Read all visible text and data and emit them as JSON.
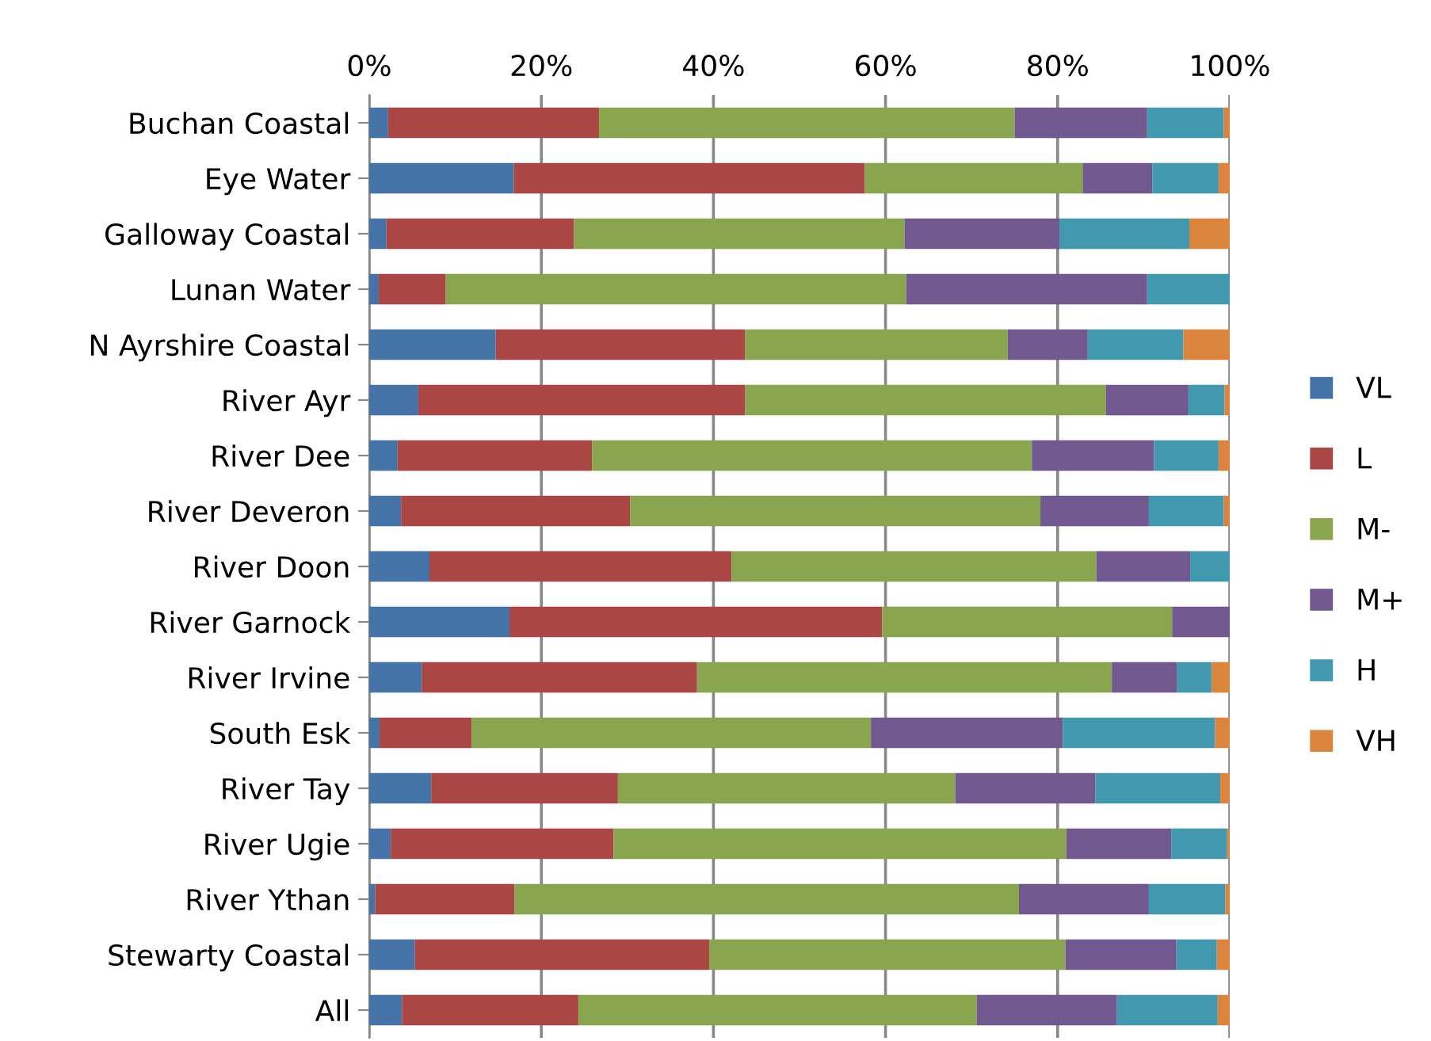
{
  "chart_data": {
    "type": "bar",
    "orientation": "horizontal",
    "stacked": true,
    "categories": [
      "Buchan Coastal",
      "Eye Water",
      "Galloway Coastal",
      "Lunan Water",
      "N Ayrshire Coastal",
      "River Ayr",
      "River Dee",
      "River Deveron",
      "River Doon",
      "River Garnock",
      "River Irvine",
      "South Esk",
      "River Tay",
      "River Ugie",
      "River Ythan",
      "Stewarty Coastal",
      "All"
    ],
    "series": [
      {
        "name": "VL",
        "color": "#4572a7",
        "values": [
          2.2,
          16.8,
          2.0,
          1.1,
          14.7,
          5.7,
          3.3,
          3.7,
          7.0,
          16.3,
          6.1,
          1.2,
          7.2,
          2.5,
          0.7,
          5.3,
          3.8
        ]
      },
      {
        "name": "L",
        "color": "#aa4643",
        "values": [
          24.5,
          40.8,
          21.8,
          7.8,
          29.0,
          38.0,
          22.6,
          26.6,
          35.1,
          43.3,
          32.0,
          10.7,
          21.7,
          25.9,
          16.2,
          34.2,
          20.5
        ]
      },
      {
        "name": "M-",
        "color": "#89a54e",
        "values": [
          48.3,
          25.3,
          38.4,
          53.5,
          30.5,
          41.9,
          51.1,
          47.7,
          42.4,
          33.7,
          48.2,
          46.4,
          39.2,
          52.6,
          58.6,
          41.4,
          46.3
        ]
      },
      {
        "name": "M+",
        "color": "#71588f",
        "values": [
          15.4,
          8.1,
          18.0,
          28.0,
          9.3,
          9.6,
          14.2,
          12.6,
          10.9,
          6.7,
          7.6,
          22.3,
          16.3,
          12.2,
          15.1,
          12.9,
          16.3
        ]
      },
      {
        "name": "H",
        "color": "#4198af",
        "values": [
          8.9,
          7.7,
          15.1,
          9.6,
          11.1,
          4.2,
          7.5,
          8.7,
          4.6,
          0,
          4.0,
          17.7,
          14.5,
          6.5,
          8.9,
          4.7,
          11.7
        ]
      },
      {
        "name": "VH",
        "color": "#db843d",
        "values": [
          0.7,
          1.3,
          4.7,
          0,
          5.4,
          0.6,
          1.3,
          0.7,
          0,
          0,
          2.1,
          1.7,
          1.1,
          0.3,
          0.5,
          1.5,
          1.4
        ]
      }
    ],
    "xlim": [
      0,
      100
    ],
    "xticks": [
      {
        "value": 0,
        "label": "0%"
      },
      {
        "value": 20,
        "label": "20%"
      },
      {
        "value": 40,
        "label": "40%"
      },
      {
        "value": 60,
        "label": "60%"
      },
      {
        "value": 80,
        "label": "80%"
      },
      {
        "value": 100,
        "label": "100%"
      }
    ],
    "grid": "x",
    "legend": "right"
  }
}
